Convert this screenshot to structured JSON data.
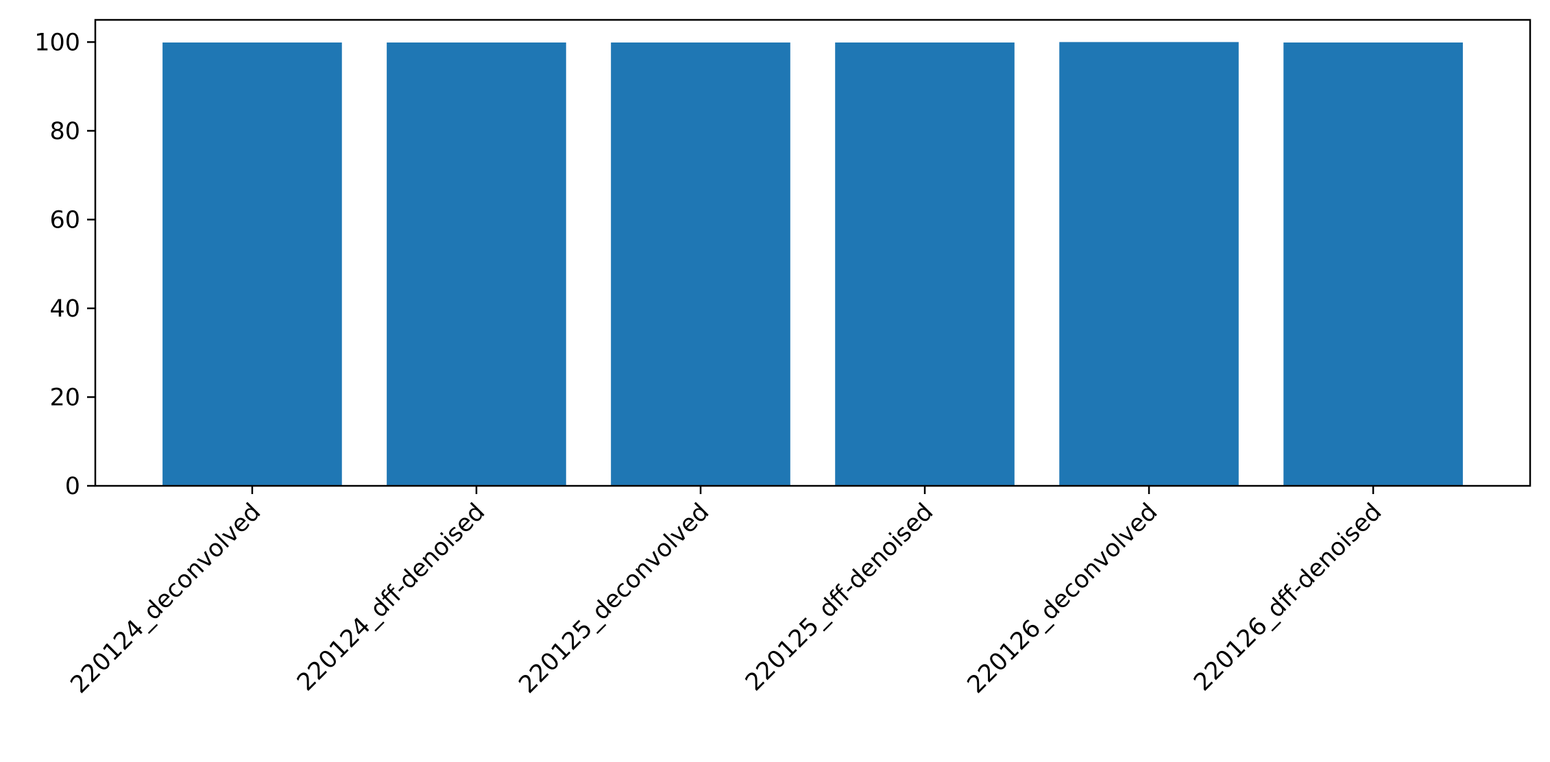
{
  "chart_data": {
    "type": "bar",
    "categories": [
      "220124_deconvolved",
      "220124_dff-denoised",
      "220125_deconvolved",
      "220125_dff-denoised",
      "220126_deconvolved",
      "220126_dff-denoised"
    ],
    "values": [
      99.9,
      99.9,
      99.9,
      99.9,
      100.0,
      99.9
    ],
    "title": "",
    "xlabel": "",
    "ylabel": "",
    "ylim": [
      0,
      105
    ],
    "yticks": [
      0,
      20,
      40,
      60,
      80,
      100
    ],
    "xtick_rotation_deg": 45,
    "grid": false,
    "legend": "none",
    "colors": {
      "bar": "#1f77b4",
      "axes": "#000000",
      "background": "#ffffff"
    }
  }
}
